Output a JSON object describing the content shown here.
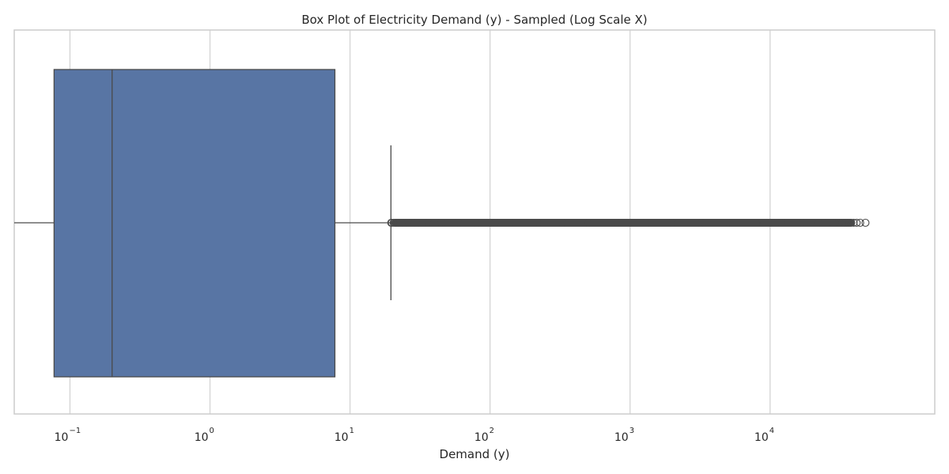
{
  "chart_data": {
    "type": "box",
    "title": "Box Plot of Electricity Demand (y) - Sampled (Log Scale X)",
    "xlabel": "Demand (y)",
    "ylabel": "",
    "x_scale": "log",
    "xlim": [
      0.04,
      150000
    ],
    "grid": true,
    "x_ticks": [
      {
        "value": 0.1,
        "base": "10",
        "exp": "−1"
      },
      {
        "value": 1,
        "base": "10",
        "exp": "0"
      },
      {
        "value": 10,
        "base": "10",
        "exp": "1"
      },
      {
        "value": 100,
        "base": "10",
        "exp": "2"
      },
      {
        "value": 1000,
        "base": "10",
        "exp": "3"
      },
      {
        "value": 10000,
        "base": "10",
        "exp": "4"
      }
    ],
    "box": {
      "whisker_low": 0.04,
      "q1": 0.077,
      "median": 0.2,
      "q3": 7.8,
      "whisker_high": 19.6
    },
    "outliers": {
      "dense_range": [
        19.6,
        40000
      ],
      "points": [
        19.7,
        19.9,
        20.5,
        21.5,
        23,
        26,
        30,
        36,
        45,
        60,
        80,
        110,
        150,
        220,
        330,
        500,
        800,
        1300,
        2000,
        3200,
        5000,
        8000,
        12000,
        17000,
        22000,
        26000,
        29000,
        31000,
        33000,
        35000,
        36500,
        38000,
        39500,
        41500,
        44000,
        48000
      ]
    },
    "colors": {
      "box_fill": "#5875a4",
      "line": "#4a4a4a",
      "grid": "#d4d4d4",
      "frame": "#cccccc",
      "outlier_band": "#4a4a4a"
    }
  }
}
